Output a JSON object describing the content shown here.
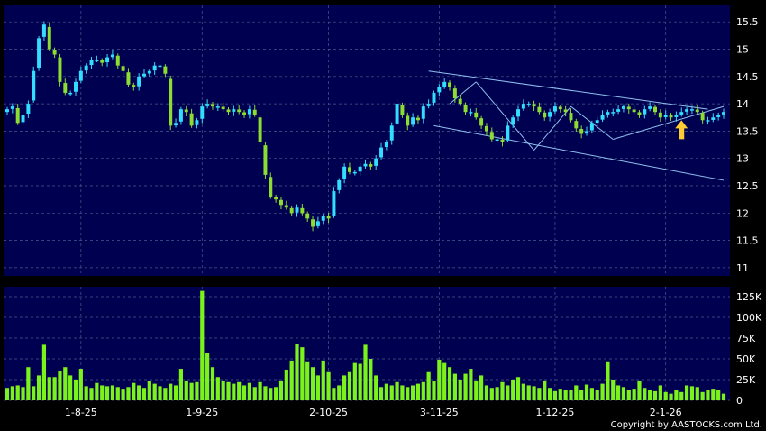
{
  "colors": {
    "background": "#000000",
    "panel": "#000050",
    "grid": "#4a5a8a",
    "up": "#33ddff",
    "down": "#8cdc32",
    "volume": "#7cf21b",
    "trend": "#8fc2ee",
    "arrow": "#ffcc33"
  },
  "copyright": "Copyright by AASTOCKS.com Ltd.",
  "chart_data": [
    {
      "type": "candlestick",
      "y_tick_labels": [
        "15.5",
        "15",
        "14.5",
        "14",
        "13.5",
        "13",
        "12.5",
        "12",
        "11.5",
        "11"
      ],
      "y_ticks": [
        15.5,
        15,
        14.5,
        14,
        13.5,
        13,
        12.5,
        12,
        11.5,
        11
      ],
      "ylim": [
        10.85,
        15.8
      ],
      "x_tick_labels": [
        "1-8-25",
        "1-9-25",
        "2-10-25",
        "3-11-25",
        "1-12-25",
        "2-1-26"
      ],
      "x_tick_index": [
        14,
        37,
        61,
        82,
        104,
        125
      ],
      "n_bars": 137,
      "closes": [
        13.9,
        13.95,
        13.65,
        13.8,
        14.0,
        14.6,
        15.2,
        15.45,
        15.0,
        14.9,
        14.4,
        14.2,
        14.2,
        14.4,
        14.6,
        14.7,
        14.8,
        14.8,
        14.75,
        14.85,
        14.9,
        14.7,
        14.6,
        14.35,
        14.3,
        14.5,
        14.55,
        14.6,
        14.7,
        14.7,
        14.55,
        13.6,
        13.65,
        13.9,
        13.85,
        13.6,
        13.7,
        13.95,
        14.0,
        13.95,
        13.95,
        13.9,
        13.85,
        13.9,
        13.85,
        13.8,
        13.9,
        13.8,
        13.3,
        12.7,
        12.3,
        12.25,
        12.15,
        12.1,
        12.0,
        12.1,
        12.0,
        11.9,
        11.75,
        11.85,
        11.95,
        11.9,
        12.4,
        12.6,
        12.85,
        12.75,
        12.75,
        12.85,
        12.9,
        12.85,
        13.0,
        13.2,
        13.3,
        13.6,
        14.0,
        13.8,
        13.6,
        13.75,
        13.7,
        13.95,
        14.0,
        14.2,
        14.3,
        14.4,
        14.3,
        14.1,
        14.0,
        13.85,
        13.85,
        13.75,
        13.6,
        13.5,
        13.35,
        13.35,
        13.3,
        13.6,
        13.75,
        13.9,
        14.0,
        14.0,
        13.95,
        13.85,
        13.75,
        13.85,
        13.95,
        13.9,
        13.85,
        13.7,
        13.55,
        13.45,
        13.5,
        13.65,
        13.7,
        13.8,
        13.85,
        13.85,
        13.9,
        13.95,
        13.9,
        13.85,
        13.8,
        13.9,
        13.95,
        13.85,
        13.75,
        13.8,
        13.75,
        13.8,
        13.85,
        13.9,
        13.9,
        13.85,
        13.7,
        13.7,
        13.75,
        13.8,
        13.85
      ]
    },
    {
      "type": "bar",
      "y_tick_labels": [
        "125K",
        "100K",
        "75K",
        "50K",
        "25K",
        "0"
      ],
      "y_ticks": [
        125000,
        100000,
        75000,
        50000,
        25000,
        0
      ],
      "ylim": [
        0,
        137000
      ],
      "volumes": [
        15000,
        17000,
        18000,
        16000,
        40000,
        17000,
        30000,
        67000,
        28000,
        28000,
        35000,
        40000,
        30000,
        25000,
        38000,
        17000,
        15000,
        21000,
        18000,
        17000,
        18000,
        16000,
        14000,
        16000,
        21000,
        18000,
        15000,
        23000,
        20000,
        17000,
        15000,
        20000,
        18000,
        38000,
        24000,
        21000,
        22000,
        132000,
        57000,
        40000,
        28000,
        24000,
        22000,
        20000,
        22000,
        18000,
        21000,
        16000,
        22000,
        17000,
        15000,
        16000,
        24000,
        37000,
        48000,
        68000,
        64000,
        47000,
        40000,
        30000,
        48000,
        34000,
        15000,
        18000,
        30000,
        34000,
        45000,
        44000,
        67000,
        50000,
        30000,
        16000,
        20000,
        18000,
        22000,
        18000,
        16000,
        18000,
        20000,
        22000,
        34000,
        23000,
        49000,
        45000,
        40000,
        32000,
        25000,
        32000,
        38000,
        24000,
        30000,
        18000,
        15000,
        16000,
        22000,
        18000,
        25000,
        28000,
        20000,
        18000,
        17000,
        15000,
        24000,
        15000,
        11000,
        14000,
        13000,
        12000,
        18000,
        13000,
        19000,
        15000,
        12000,
        20000,
        47000,
        25000,
        18000,
        16000,
        12000,
        14000,
        24000,
        15000,
        12000,
        11000,
        18000,
        10000,
        8000,
        12000,
        10000,
        18000,
        17000,
        16000,
        10000,
        12000,
        14000,
        12000,
        8000
      ]
    }
  ]
}
